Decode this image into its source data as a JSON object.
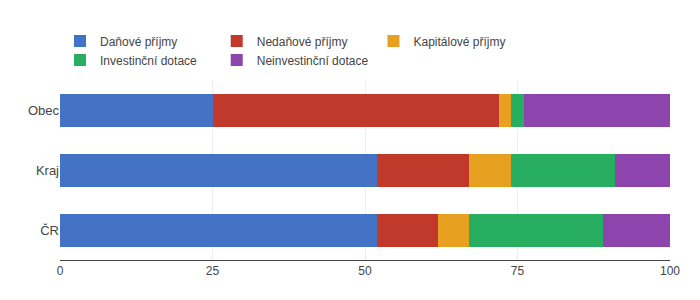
{
  "chart_data": {
    "type": "bar",
    "orientation": "horizontal",
    "stacked": true,
    "categories": [
      "Obec",
      "Kraj",
      "ČR"
    ],
    "series": [
      {
        "name": "Daňové příjmy",
        "color": "#4472c4",
        "values": [
          25,
          52,
          52
        ]
      },
      {
        "name": "Nedaňové příjmy",
        "color": "#c0392b",
        "values": [
          47,
          15,
          10
        ]
      },
      {
        "name": "Kapitálové příjmy",
        "color": "#e8a020",
        "values": [
          2,
          7,
          5
        ]
      },
      {
        "name": "Investinční dotace",
        "color": "#27ae60",
        "values": [
          2,
          17,
          22
        ]
      },
      {
        "name": "Neinvestinční dotace",
        "color": "#8e44ad",
        "values": [
          24,
          9,
          11
        ]
      }
    ],
    "xlim": [
      0,
      100
    ],
    "xticks": [
      0,
      25,
      50,
      75,
      100
    ],
    "grid": true,
    "legend": "upper left"
  }
}
